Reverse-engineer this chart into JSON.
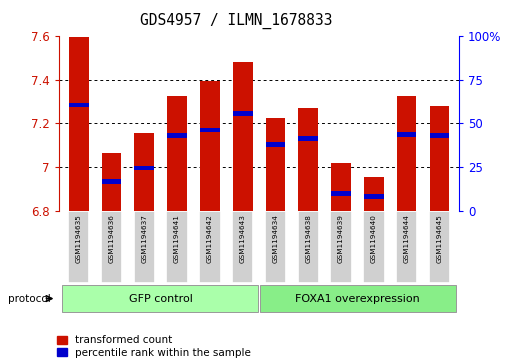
{
  "title": "GDS4957 / ILMN_1678833",
  "samples": [
    "GSM1194635",
    "GSM1194636",
    "GSM1194637",
    "GSM1194641",
    "GSM1194642",
    "GSM1194643",
    "GSM1194634",
    "GSM1194638",
    "GSM1194639",
    "GSM1194640",
    "GSM1194644",
    "GSM1194645"
  ],
  "transformed_counts": [
    7.595,
    7.065,
    7.155,
    7.325,
    7.395,
    7.48,
    7.225,
    7.27,
    7.02,
    6.955,
    7.325,
    7.28
  ],
  "percentile_values": [
    7.285,
    6.935,
    6.995,
    7.145,
    7.17,
    7.245,
    7.105,
    7.13,
    6.88,
    6.865,
    7.15,
    7.145
  ],
  "y_min": 6.8,
  "y_max": 7.6,
  "y_ticks": [
    6.8,
    7.0,
    7.2,
    7.4,
    7.6
  ],
  "right_y_ticks": [
    0,
    25,
    50,
    75,
    100
  ],
  "right_y_labels": [
    "0",
    "25",
    "50",
    "75",
    "100%"
  ],
  "group1_label": "GFP control",
  "group2_label": "FOXA1 overexpression",
  "group1_count": 6,
  "group2_count": 6,
  "bar_color": "#cc1100",
  "dot_color": "#0000cc",
  "bar_width": 0.6,
  "group_bg_color": "#cccccc",
  "group1_fill": "#aaffaa",
  "group2_fill": "#88ee88",
  "legend_red_label": "transformed count",
  "legend_blue_label": "percentile rank within the sample",
  "protocol_label": "protocol"
}
